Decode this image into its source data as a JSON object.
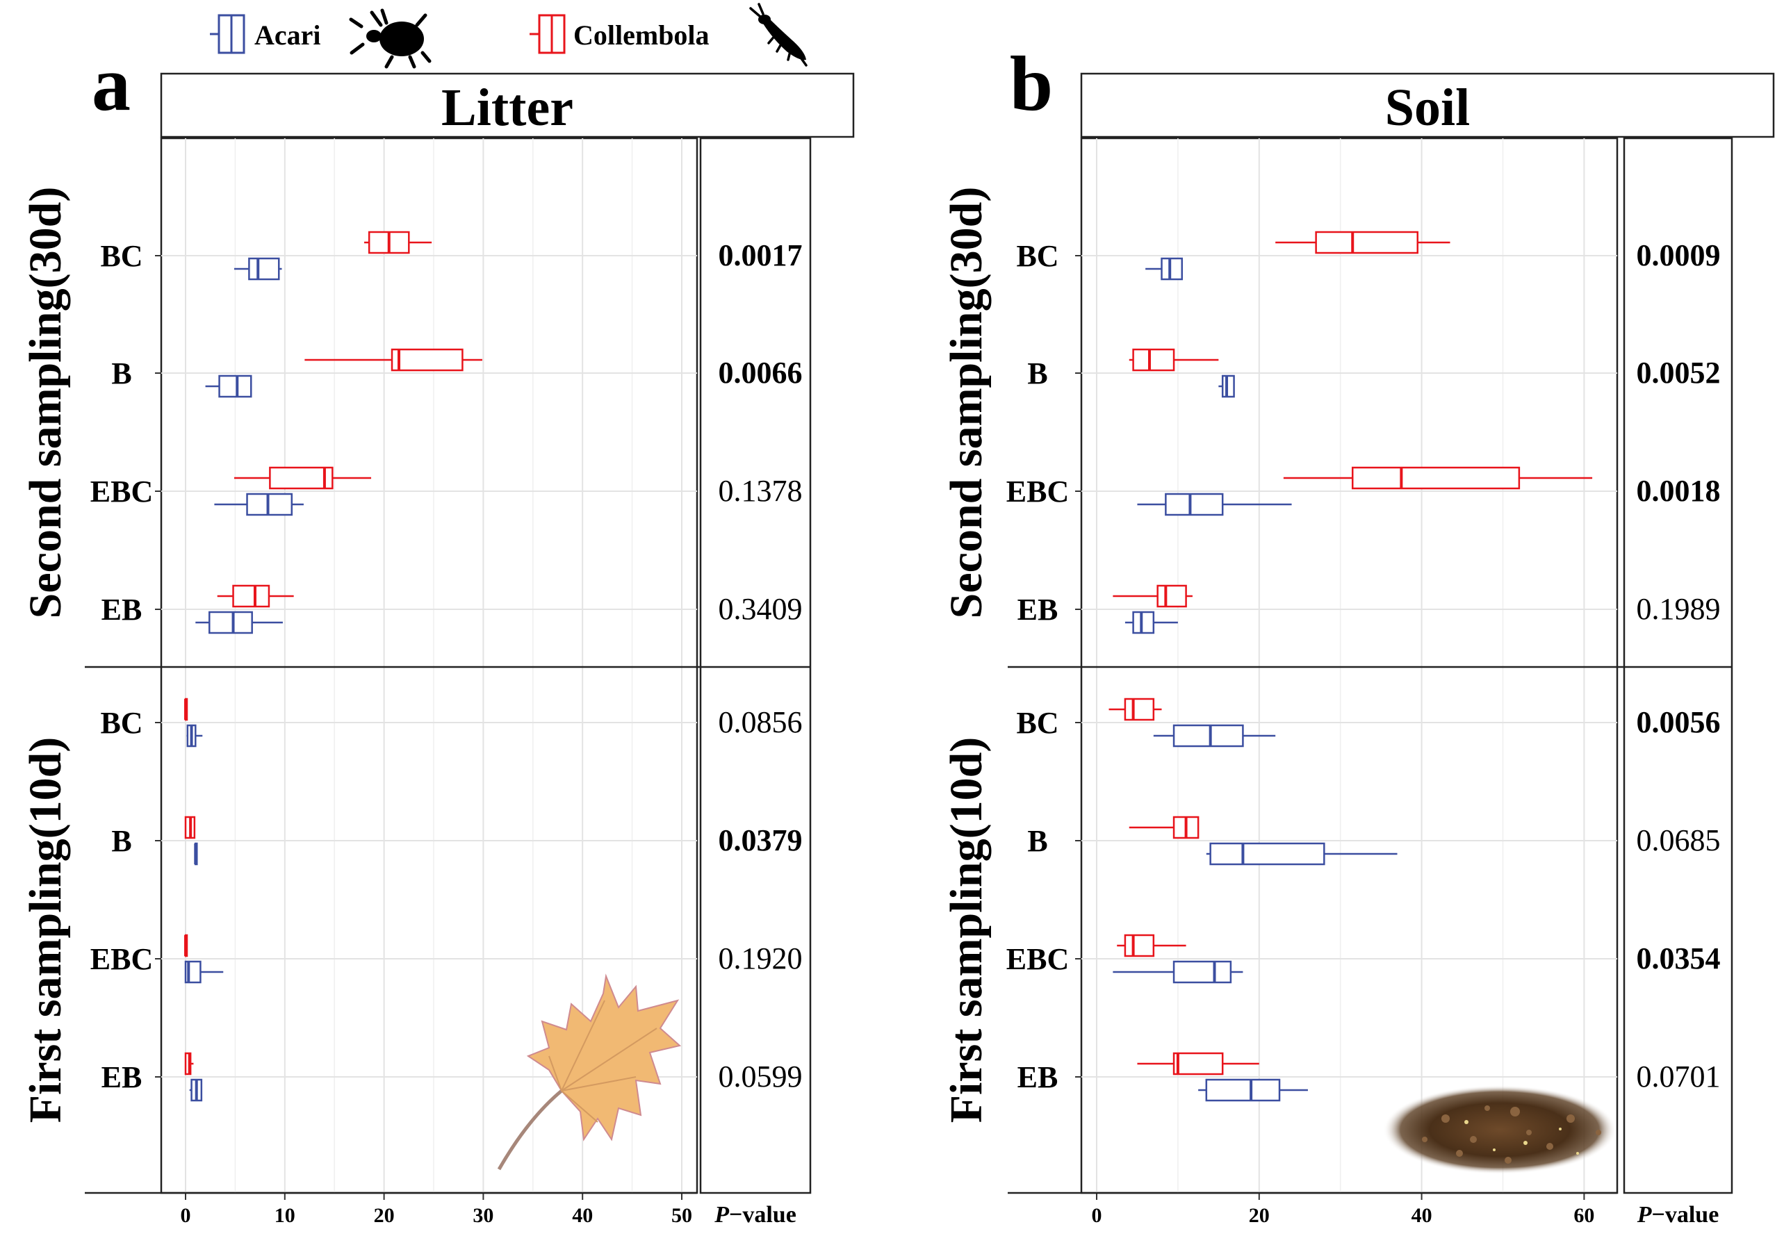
{
  "legend": {
    "items": [
      {
        "name": "Acari",
        "color": "#3b4ea0",
        "icon": "mite-icon"
      },
      {
        "name": "Collembola",
        "color": "#e8141b",
        "icon": "springtail-icon"
      }
    ]
  },
  "pvalue_label_italic": "P",
  "pvalue_label_rest": "−value",
  "chart_data": [
    {
      "type": "boxplot",
      "panel_letter": "a",
      "title": "Litter",
      "xticks": [
        0,
        10,
        20,
        30,
        40,
        50
      ],
      "xlim": [
        -2.5,
        51
      ],
      "decoration": "maple-leaf-image",
      "sections": [
        {
          "label": "Second sampling(30d)",
          "rows": [
            {
              "category": "BC",
              "collembola": {
                "min": 18,
                "q1": 18.5,
                "median": 20.5,
                "q3": 22.5,
                "max": 24.8
              },
              "acari": {
                "min": 4.9,
                "q1": 6.4,
                "median": 7.3,
                "q3": 9.4,
                "max": 9.7
              },
              "p": "0.0017",
              "sig": true
            },
            {
              "category": "B",
              "collembola": {
                "min": 12,
                "q1": 20.8,
                "median": 21.5,
                "q3": 27.9,
                "max": 29.9
              },
              "acari": {
                "min": 2,
                "q1": 3.4,
                "median": 5.2,
                "q3": 6.6,
                "max": 6.6
              },
              "p": "0.0066",
              "sig": true
            },
            {
              "category": "EBC",
              "collembola": {
                "min": 4.9,
                "q1": 8.5,
                "median": 14,
                "q3": 14.8,
                "max": 18.7
              },
              "acari": {
                "min": 2.9,
                "q1": 6.2,
                "median": 8.3,
                "q3": 10.7,
                "max": 11.9
              },
              "p": "0.1378",
              "sig": false
            },
            {
              "category": "EB",
              "collembola": {
                "min": 3.2,
                "q1": 4.8,
                "median": 7,
                "q3": 8.4,
                "max": 10.9
              },
              "acari": {
                "min": 1,
                "q1": 2.4,
                "median": 4.8,
                "q3": 6.7,
                "max": 9.8
              },
              "p": "0.3409",
              "sig": false
            }
          ]
        },
        {
          "label": "First sampling(10d)",
          "rows": [
            {
              "category": "BC",
              "collembola": {
                "min": 0,
                "q1": 0,
                "median": 0,
                "q3": 0.1,
                "max": 0.1
              },
              "acari": {
                "min": 0.1,
                "q1": 0.2,
                "median": 0.6,
                "q3": 1,
                "max": 1.7
              },
              "p": "0.0856",
              "sig": false
            },
            {
              "category": "B",
              "collembola": {
                "min": 0,
                "q1": 0,
                "median": 0.5,
                "q3": 0.9,
                "max": 0.9
              },
              "acari": {
                "min": 1,
                "q1": 1,
                "median": 1,
                "q3": 1.1,
                "max": 1.1
              },
              "p": "0.0379",
              "sig": true
            },
            {
              "category": "EBC",
              "collembola": {
                "min": 0,
                "q1": 0,
                "median": 0,
                "q3": 0.1,
                "max": 0.1
              },
              "acari": {
                "min": 0,
                "q1": 0,
                "median": 0.3,
                "q3": 1.5,
                "max": 3.8
              },
              "p": "0.1920",
              "sig": false
            },
            {
              "category": "EB",
              "collembola": {
                "min": 0,
                "q1": 0,
                "median": 0.4,
                "q3": 0.5,
                "max": 0.8
              },
              "acari": {
                "min": 0.4,
                "q1": 0.6,
                "median": 1.1,
                "q3": 1.6,
                "max": 1.6
              },
              "p": "0.0599",
              "sig": false
            }
          ]
        }
      ]
    },
    {
      "type": "boxplot",
      "panel_letter": "b",
      "title": "Soil",
      "xticks": [
        0,
        20,
        40,
        60
      ],
      "xlim": [
        -2,
        64
      ],
      "decoration": "soil-image",
      "sections": [
        {
          "label": "Second sampling(30d)",
          "rows": [
            {
              "category": "BC",
              "collembola": {
                "min": 22,
                "q1": 27,
                "median": 31.5,
                "q3": 39.5,
                "max": 43.5
              },
              "acari": {
                "min": 6,
                "q1": 8,
                "median": 9,
                "q3": 10.5,
                "max": 10.5
              },
              "p": "0.0009",
              "sig": true
            },
            {
              "category": "B",
              "collembola": {
                "min": 4,
                "q1": 4.5,
                "median": 6.5,
                "q3": 9.5,
                "max": 15
              },
              "acari": {
                "min": 15,
                "q1": 15.5,
                "median": 16,
                "q3": 16.9,
                "max": 16.9
              },
              "p": "0.0052",
              "sig": true
            },
            {
              "category": "EBC",
              "collembola": {
                "min": 23,
                "q1": 31.5,
                "median": 37.5,
                "q3": 52,
                "max": 61
              },
              "acari": {
                "min": 5,
                "q1": 8.5,
                "median": 11.5,
                "q3": 15.5,
                "max": 24
              },
              "p": "0.0018",
              "sig": true
            },
            {
              "category": "EB",
              "collembola": {
                "min": 2,
                "q1": 7.5,
                "median": 8.5,
                "q3": 11,
                "max": 11.8
              },
              "acari": {
                "min": 3.5,
                "q1": 4.5,
                "median": 5.5,
                "q3": 7,
                "max": 10
              },
              "p": "0.1989",
              "sig": false
            }
          ]
        },
        {
          "label": "First sampling(10d)",
          "rows": [
            {
              "category": "BC",
              "collembola": {
                "min": 1.5,
                "q1": 3.5,
                "median": 4.5,
                "q3": 7,
                "max": 8
              },
              "acari": {
                "min": 7,
                "q1": 9.5,
                "median": 14,
                "q3": 18,
                "max": 22
              },
              "p": "0.0056",
              "sig": true
            },
            {
              "category": "B",
              "collembola": {
                "min": 4,
                "q1": 9.5,
                "median": 11,
                "q3": 12.5,
                "max": 12.5
              },
              "acari": {
                "min": 13.5,
                "q1": 14,
                "median": 18,
                "q3": 28,
                "max": 37
              },
              "p": "0.0685",
              "sig": false
            },
            {
              "category": "EBC",
              "collembola": {
                "min": 2.5,
                "q1": 3.5,
                "median": 4.5,
                "q3": 7,
                "max": 11
              },
              "acari": {
                "min": 2,
                "q1": 9.5,
                "median": 14.5,
                "q3": 16.5,
                "max": 18
              },
              "p": "0.0354",
              "sig": true
            },
            {
              "category": "EB",
              "collembola": {
                "min": 5,
                "q1": 9.5,
                "median": 10,
                "q3": 15.5,
                "max": 20
              },
              "acari": {
                "min": 12.5,
                "q1": 13.5,
                "median": 19,
                "q3": 22.5,
                "max": 26
              },
              "p": "0.0701",
              "sig": false
            }
          ]
        }
      ]
    }
  ]
}
